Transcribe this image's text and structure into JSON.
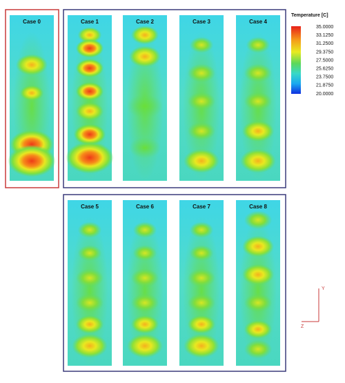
{
  "panels": [
    {
      "label": "Case 0"
    },
    {
      "label": "Case 1"
    },
    {
      "label": "Case 2"
    },
    {
      "label": "Case 3"
    },
    {
      "label": "Case 4"
    },
    {
      "label": "Case 5"
    },
    {
      "label": "Case 6"
    },
    {
      "label": "Case 7"
    },
    {
      "label": "Case 8"
    }
  ],
  "legend": {
    "title": "Temperature [C]",
    "ticks": [
      "35.0000",
      "33.1250",
      "31.2500",
      "29.3750",
      "27.5000",
      "25.6250",
      "23.7500",
      "21.8750",
      "20.0000"
    ]
  },
  "axes": {
    "y": "Y",
    "z": "Z"
  }
}
